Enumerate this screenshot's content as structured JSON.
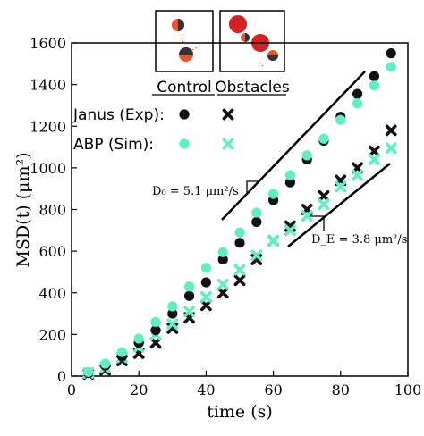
{
  "chart_data": {
    "type": "scatter",
    "xlabel": "time (s)",
    "ylabel": "MSD(t) (μm²)",
    "xlim": [
      0,
      100
    ],
    "ylim": [
      0,
      1600
    ],
    "x_ticks": [
      "0",
      "20",
      "40",
      "60",
      "80",
      "100"
    ],
    "y_ticks": [
      "0",
      "200",
      "400",
      "600",
      "800",
      "1000",
      "1200",
      "1400",
      "1600"
    ],
    "grid": false,
    "legend": {
      "placement": "top-left",
      "column_headers": [
        "Control",
        "Obstacles"
      ],
      "rows": [
        "Janus (Exp):",
        "ABP (Sim):"
      ]
    },
    "colors": {
      "exp": "#111111",
      "sim": "#5ef0c4"
    },
    "series": [
      {
        "name": "Janus (Exp) Control",
        "marker": "circle",
        "color": "#111111",
        "x": [
          5,
          10,
          15,
          20,
          25,
          30,
          35,
          40,
          45,
          50,
          55,
          60,
          65,
          70,
          75,
          80,
          85,
          90,
          95
        ],
        "y": [
          15,
          50,
          95,
          160,
          220,
          300,
          385,
          450,
          560,
          640,
          740,
          845,
          930,
          1040,
          1130,
          1245,
          1355,
          1440,
          1550
        ]
      },
      {
        "name": "Janus (Exp) Obstacles",
        "marker": "x",
        "color": "#111111",
        "x": [
          5,
          10,
          15,
          20,
          25,
          30,
          35,
          40,
          45,
          50,
          55,
          60,
          65,
          70,
          75,
          80,
          85,
          90,
          95
        ],
        "y": [
          10,
          30,
          75,
          110,
          160,
          230,
          280,
          340,
          400,
          460,
          560,
          650,
          720,
          800,
          865,
          940,
          1000,
          1080,
          1180
        ]
      },
      {
        "name": "ABP (Sim) Control",
        "marker": "circle",
        "color": "#5ef0c4",
        "x": [
          5,
          10,
          15,
          20,
          25,
          30,
          35,
          40,
          45,
          50,
          55,
          60,
          65,
          70,
          75,
          80,
          85,
          90,
          95
        ],
        "y": [
          20,
          60,
          115,
          180,
          260,
          335,
          430,
          520,
          595,
          690,
          785,
          875,
          965,
          1060,
          1140,
          1230,
          1310,
          1395,
          1485
        ]
      },
      {
        "name": "ABP (Sim) Obstacles",
        "marker": "x",
        "color": "#5ef0c4",
        "x": [
          5,
          10,
          15,
          20,
          25,
          30,
          35,
          40,
          45,
          50,
          55,
          60,
          65,
          70,
          75,
          80,
          85,
          90,
          95
        ],
        "y": [
          15,
          40,
          90,
          140,
          200,
          250,
          310,
          380,
          440,
          510,
          580,
          650,
          700,
          770,
          825,
          910,
          965,
          1040,
          1095
        ]
      }
    ],
    "annotations": [
      {
        "text": "D₀ = 5.1 μm²/s"
      },
      {
        "text": "D_E = 3.8 μm²/s"
      }
    ]
  }
}
